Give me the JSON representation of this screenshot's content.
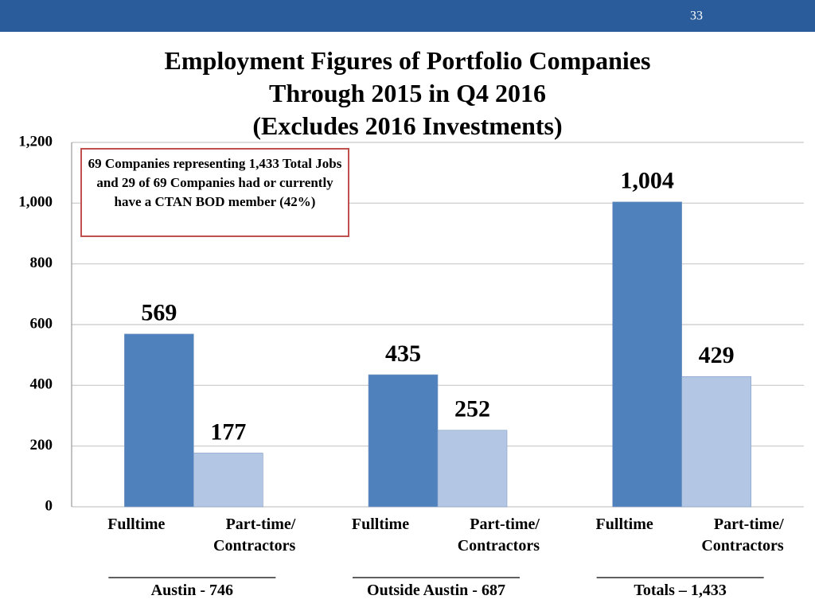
{
  "page_number": "33",
  "chart_data": {
    "type": "bar",
    "title": [
      "Employment Figures of Portfolio Companies",
      "Through 2015 in Q4 2016",
      "(Excludes 2016 Investments)"
    ],
    "annotation": "69 Companies representing 1,433 Total Jobs and 29 of 69 Companies had or currently have a CTAN BOD member (42%)",
    "categories": [
      "Austin - 746",
      "Outside Austin - 687",
      "Totals – 1,433"
    ],
    "series": [
      {
        "name": "Fulltime",
        "color": "#4f81bd",
        "values": [
          569,
          435,
          1004
        ],
        "value_labels": [
          "569",
          "435",
          "1,004"
        ]
      },
      {
        "name": "Part-time/ Contractors",
        "color": "#b3c7e5",
        "values": [
          177,
          252,
          429
        ]
      }
    ],
    "ylim": [
      0,
      1200
    ],
    "yticks": [
      0,
      200,
      400,
      600,
      800,
      {
        "value": 1000,
        "label": "1,000"
      },
      {
        "value": 1200,
        "label": "1,200"
      }
    ],
    "grid": true
  }
}
